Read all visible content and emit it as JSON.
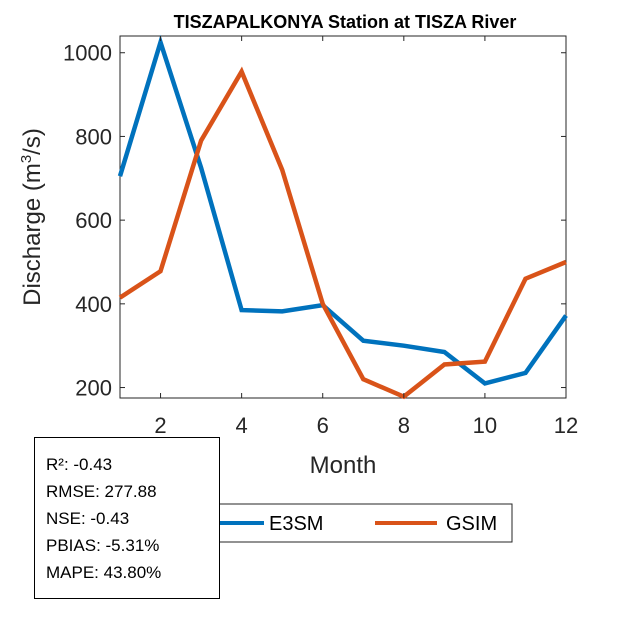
{
  "chart_data": {
    "type": "line",
    "title": "TISZAPALKONYA  Station at  TISZA  River",
    "xlabel": "Month",
    "ylabel_main": "Discharge (m",
    "ylabel_sup": "3",
    "ylabel_tail": "/s)",
    "xlim": [
      1,
      12
    ],
    "ylim": [
      175,
      1040
    ],
    "xticks": [
      2,
      4,
      6,
      8,
      10,
      12
    ],
    "yticks": [
      200,
      400,
      600,
      800,
      1000
    ],
    "x": [
      1,
      2,
      3,
      4,
      5,
      6,
      7,
      8,
      9,
      10,
      11,
      12
    ],
    "series": [
      {
        "name": "E3SM",
        "color": "#0072BD",
        "values": [
          705,
          1025,
          725,
          385,
          382,
          397,
          312,
          300,
          285,
          210,
          235,
          372
        ]
      },
      {
        "name": "GSIM",
        "color": "#D95319",
        "values": [
          415,
          478,
          790,
          955,
          720,
          400,
          220,
          178,
          255,
          262,
          460,
          500
        ]
      }
    ]
  },
  "stats": {
    "r2": "R²: -0.43",
    "rmse": "RMSE: 277.88",
    "nse": "NSE: -0.43",
    "pbias": "PBIAS: -5.31%",
    "mape": "MAPE: 43.80%"
  }
}
